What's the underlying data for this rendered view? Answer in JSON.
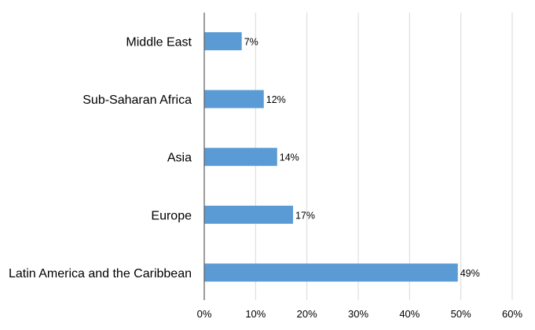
{
  "chart_data": {
    "type": "bar",
    "orientation": "horizontal",
    "categories": [
      "Middle East",
      "Sub-Saharan Africa",
      "Asia",
      "Europe",
      "Latin America and the Caribbean"
    ],
    "values": [
      7,
      12,
      14,
      17,
      49
    ],
    "value_labels": [
      "7%",
      "12%",
      "14%",
      "17%",
      "49%"
    ],
    "bar_values": [
      7.3,
      11.6,
      14.2,
      17.3,
      49.4
    ],
    "xlim": [
      0,
      60
    ],
    "xticks": [
      0,
      10,
      20,
      30,
      40,
      50,
      60
    ],
    "xtick_labels": [
      "0%",
      "10%",
      "20%",
      "30%",
      "40%",
      "50%",
      "60%"
    ],
    "title": "",
    "xlabel": "",
    "ylabel": "",
    "grid": "vertical",
    "legend": "none",
    "colors": {
      "bar": "#5b9bd5",
      "grid": "#d9d9d9",
      "axis": "#595959"
    }
  }
}
